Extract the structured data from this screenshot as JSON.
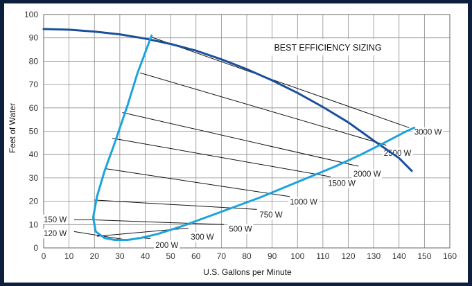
{
  "chart_data": {
    "type": "line",
    "title": "BEST EFFICIENCY SIZING",
    "xlabel": "U.S. Gallons per Minute",
    "ylabel": "Feet of Water",
    "xlim": [
      0,
      160
    ],
    "ylim": [
      0,
      100
    ],
    "x_ticks": [
      "0",
      "10",
      "20",
      "30",
      "40",
      "50",
      "60",
      "70",
      "80",
      "90",
      "100",
      "110",
      "120",
      "130",
      "140",
      "150",
      "160"
    ],
    "y_ticks": [
      "0",
      "10",
      "20",
      "30",
      "40",
      "50",
      "60",
      "70",
      "80",
      "90",
      "100"
    ],
    "grid": true,
    "series": [
      {
        "color": "#1a4f9c",
        "points": [
          [
            0,
            93.8
          ],
          [
            10,
            93.5
          ],
          [
            20,
            92.7
          ],
          [
            30,
            91.5
          ],
          [
            40,
            89.7
          ],
          [
            50,
            87.4
          ],
          [
            60,
            84.5
          ],
          [
            70,
            80.8
          ],
          [
            80,
            76.6
          ],
          [
            90,
            71.8
          ],
          [
            100,
            66.4
          ],
          [
            110,
            60.4
          ],
          [
            120,
            53.8
          ],
          [
            130,
            46.0
          ],
          [
            140,
            38.5
          ],
          [
            145,
            33.0
          ]
        ]
      },
      {
        "color": "#1aa3dc",
        "points": [
          [
            42.5,
            91
          ],
          [
            37,
            75
          ],
          [
            33,
            61
          ],
          [
            28,
            45
          ],
          [
            24,
            33
          ],
          [
            21,
            22
          ],
          [
            19.5,
            13
          ],
          [
            20.5,
            7
          ],
          [
            24,
            4.2
          ],
          [
            28,
            3.4
          ],
          [
            33,
            3.4
          ],
          [
            38,
            4.2
          ],
          [
            45,
            6
          ],
          [
            55,
            9.5
          ],
          [
            65,
            13.5
          ],
          [
            75,
            17.5
          ],
          [
            85,
            21.5
          ],
          [
            95,
            26
          ],
          [
            105,
            30.5
          ],
          [
            115,
            35
          ],
          [
            125,
            40
          ],
          [
            135,
            45.5
          ],
          [
            142,
            49.5
          ],
          [
            146,
            51.5
          ]
        ]
      }
    ],
    "watt_lines": [
      {
        "label": "3000 W",
        "from": [
          42,
          90.5
        ],
        "to": [
          144,
          51.5
        ],
        "label_at": [
          146,
          48.5
        ]
      },
      {
        "label": "2500 W",
        "from": [
          38,
          75
        ],
        "to": [
          135,
          44
        ],
        "label_at": [
          134,
          39.5
        ]
      },
      {
        "label": "2000 W",
        "from": [
          31,
          58
        ],
        "to": [
          124,
          35
        ],
        "label_at": [
          122,
          30.5
        ]
      },
      {
        "label": "1500 W",
        "from": [
          27,
          47
        ],
        "to": [
          113,
          30.5
        ],
        "label_at": [
          112,
          26.5
        ]
      },
      {
        "label": "1000 W",
        "from": [
          24,
          34
        ],
        "to": [
          97,
          22
        ],
        "label_at": [
          97,
          18.5
        ]
      },
      {
        "label": "750 W",
        "from": [
          20,
          20.5
        ],
        "to": [
          84,
          16.5
        ],
        "label_at": [
          85,
          13
        ]
      },
      {
        "label": "500 W",
        "from": [
          20,
          12
        ],
        "to": [
          71,
          10
        ],
        "label_at": [
          73,
          7
        ]
      },
      {
        "label": "300 W",
        "from": [
          21,
          5
        ],
        "to": [
          57,
          8.5
        ],
        "label_at": [
          58,
          3.5
        ]
      },
      {
        "label": "200 W",
        "from": [
          37,
          4.5
        ],
        "to": [
          42,
          4
        ],
        "label_at": [
          44,
          0
        ]
      },
      {
        "label": "150 W",
        "from": [
          20,
          12
        ],
        "to": [
          12,
          12
        ],
        "label_at": [
          0,
          11
        ]
      },
      {
        "label": "120 W",
        "from": [
          33,
          3.4
        ],
        "to": [
          12,
          7
        ],
        "label_at": [
          0,
          5
        ]
      }
    ]
  }
}
